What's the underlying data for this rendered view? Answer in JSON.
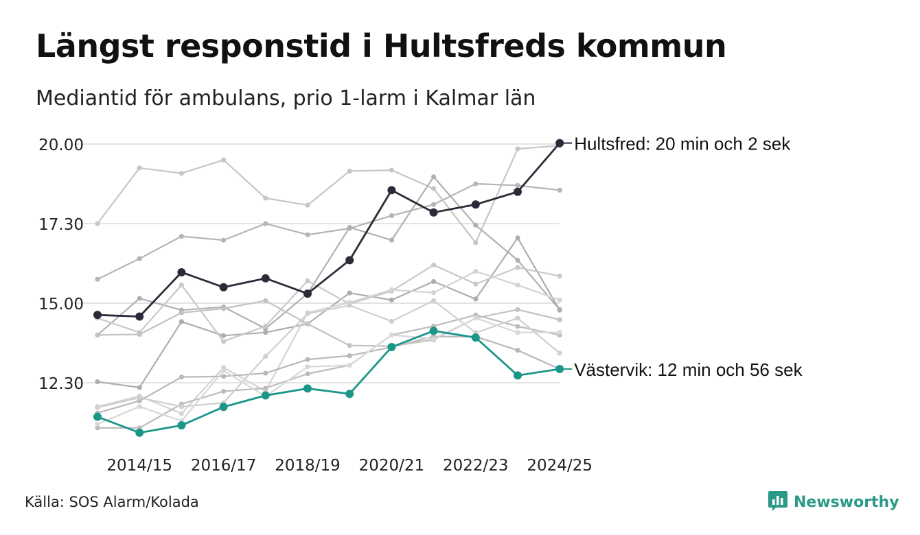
{
  "title": "Längst responstid i Hultsfreds kommun",
  "subtitle": "Mediantid för ambulans, prio 1-larm i Kalmar län",
  "source": "Källa: SOS Alarm/Kolada",
  "brand": {
    "name": "Newsworthy",
    "logo_icon": "newsworthy-chart-logo-icon",
    "color": "#2a9a86"
  },
  "chart_data": {
    "type": "line",
    "x": [
      "2013/14",
      "2014/15",
      "2015/16",
      "2016/17",
      "2017/18",
      "2018/19",
      "2019/20",
      "2020/21",
      "2021/22",
      "2022/23",
      "2023/24",
      "2024/25"
    ],
    "x_tick_labels": [
      "2014/15",
      "2016/17",
      "2018/19",
      "2020/21",
      "2022/23",
      "2024/25"
    ],
    "y_tick_values": [
      12.5,
      15.0,
      17.5,
      20.0
    ],
    "y_tick_labels": [
      "12.30",
      "15.00",
      "17.30",
      "20.00"
    ],
    "ylim": [
      10.8,
      20.1
    ],
    "grid": "horizontal",
    "series_highlight": [
      {
        "label": "Hultsfred: 20 min och 2 sek",
        "color": "#2c2a38",
        "values": [
          14.63,
          14.58,
          15.97,
          15.5,
          15.78,
          15.3,
          16.35,
          18.55,
          17.85,
          18.1,
          18.5,
          20.03
        ]
      },
      {
        "label": "Västervik: 12 min och 56 sek",
        "color": "#1a9688",
        "values": [
          11.43,
          10.93,
          11.16,
          11.74,
          12.1,
          12.32,
          12.15,
          13.62,
          14.13,
          13.92,
          12.73,
          12.93
        ]
      }
    ],
    "series_background": [
      {
        "color": "#c6c6c6",
        "values": [
          17.5,
          19.25,
          19.08,
          19.5,
          18.3,
          18.08,
          19.15,
          19.18,
          18.6,
          16.9,
          19.85,
          19.95
        ]
      },
      {
        "color": "#b5b5b5",
        "values": [
          15.75,
          16.4,
          17.1,
          16.98,
          17.5,
          17.15,
          17.35,
          17.75,
          18.1,
          18.75,
          18.7,
          18.55
        ]
      },
      {
        "color": "#adadad",
        "values": [
          12.53,
          12.35,
          14.42,
          13.98,
          14.08,
          14.35,
          15.32,
          15.1,
          15.68,
          15.13,
          17.05,
          14.78
        ]
      },
      {
        "color": "#b0b0b0",
        "values": [
          14.0,
          15.15,
          14.78,
          14.88,
          14.2,
          15.3,
          17.38,
          16.98,
          18.97,
          17.45,
          16.35,
          14.8
        ]
      },
      {
        "color": "#c9c9c9",
        "values": [
          14.53,
          14.08,
          15.57,
          13.8,
          14.28,
          15.7,
          14.98,
          15.38,
          16.2,
          15.6,
          16.12,
          15.85
        ]
      },
      {
        "color": "#d4d4d4",
        "values": [
          11.75,
          12.08,
          11.53,
          12.98,
          12.23,
          14.7,
          15.02,
          15.42,
          15.33,
          16.0,
          15.57,
          15.1
        ]
      },
      {
        "color": "#bdbdbd",
        "values": [
          11.08,
          11.08,
          11.83,
          12.23,
          12.33,
          12.78,
          13.05,
          14.0,
          14.28,
          14.63,
          14.27,
          14.0
        ]
      },
      {
        "color": "#b8b8b8",
        "values": [
          11.55,
          11.93,
          12.68,
          12.7,
          12.8,
          13.23,
          13.35,
          13.62,
          13.95,
          13.95,
          13.52,
          12.93
        ]
      },
      {
        "color": "#cfcfcf",
        "values": [
          11.72,
          12.03,
          11.75,
          11.87,
          13.33,
          14.67,
          14.93,
          14.43,
          15.08,
          14.07,
          14.53,
          13.43
        ]
      },
      {
        "color": "#c2c2c2",
        "values": [
          14.0,
          14.02,
          14.7,
          14.83,
          15.08,
          14.35,
          13.67,
          13.65,
          13.85,
          14.53,
          14.8,
          14.48
        ]
      },
      {
        "color": "#d8d8d8",
        "values": [
          11.2,
          11.75,
          11.3,
          12.88,
          12.07,
          13.0,
          13.05,
          14.0,
          13.88,
          14.53,
          14.08,
          14.08
        ]
      }
    ]
  }
}
